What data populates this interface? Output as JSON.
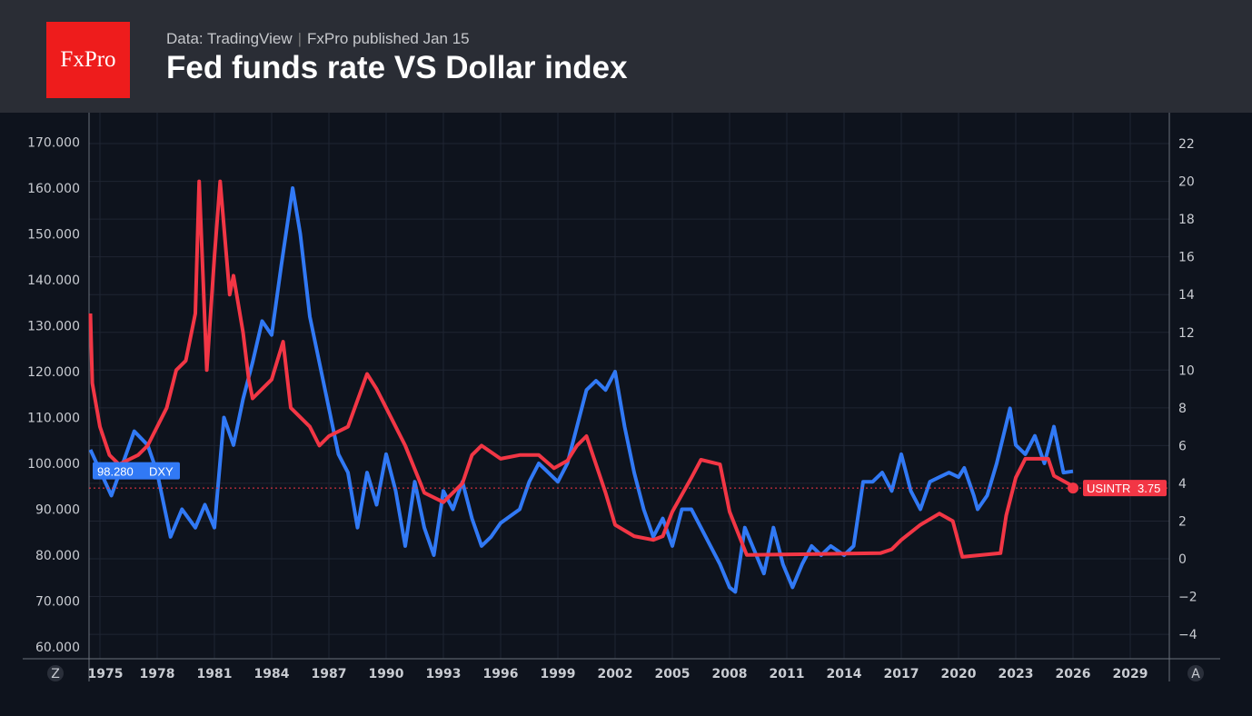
{
  "header": {
    "logo": "FxPro",
    "source": "Data: TradingView",
    "published": "FxPro published Jan 15",
    "title": "Fed funds rate VS Dollar index"
  },
  "chart_data": {
    "type": "line",
    "title": "Fed funds rate VS Dollar index",
    "x_ticks": [
      "1975",
      "1978",
      "1981",
      "1984",
      "1987",
      "1990",
      "1993",
      "1996",
      "1999",
      "2002",
      "2005",
      "2008",
      "2011",
      "2014",
      "2017",
      "2020",
      "2023",
      "2026",
      "2029"
    ],
    "xlim": [
      1974.4,
      2030.8
    ],
    "left_axis": {
      "ticks": [
        "60.000",
        "70.000",
        "80.000",
        "90.000",
        "100.000",
        "110.000",
        "120.000",
        "130.000",
        "140.000",
        "150.000",
        "160.000",
        "170.000"
      ],
      "ylim": [
        60,
        170
      ]
    },
    "right_axis": {
      "ticks": [
        "−4",
        "−2",
        "0",
        "2",
        "4",
        "6",
        "8",
        "10",
        "12",
        "14",
        "16",
        "18",
        "20",
        "22"
      ],
      "ylim": [
        -4,
        22
      ]
    },
    "grid": true,
    "corner_left": "Z",
    "corner_right": "A",
    "series": [
      {
        "name": "DXY",
        "axis": "left",
        "color": "#3179f5",
        "last_label": "98.280",
        "points": [
          [
            1974.5,
            103
          ],
          [
            1975.6,
            93
          ],
          [
            1976.8,
            107
          ],
          [
            1977.5,
            104
          ],
          [
            1978,
            98
          ],
          [
            1978.7,
            84
          ],
          [
            1979.3,
            90
          ],
          [
            1980,
            86
          ],
          [
            1980.5,
            91
          ],
          [
            1981,
            86
          ],
          [
            1981.5,
            110
          ],
          [
            1982,
            104
          ],
          [
            1982.5,
            114
          ],
          [
            1983,
            122
          ],
          [
            1983.5,
            131
          ],
          [
            1984,
            128
          ],
          [
            1984.5,
            143
          ],
          [
            1985.1,
            160
          ],
          [
            1985.5,
            150
          ],
          [
            1986,
            132
          ],
          [
            1986.5,
            122
          ],
          [
            1987,
            112
          ],
          [
            1987.5,
            102
          ],
          [
            1988,
            98
          ],
          [
            1988.5,
            86
          ],
          [
            1989,
            98
          ],
          [
            1989.5,
            91
          ],
          [
            1990,
            102
          ],
          [
            1990.5,
            94
          ],
          [
            1991,
            82
          ],
          [
            1991.5,
            96
          ],
          [
            1992,
            86
          ],
          [
            1992.5,
            80
          ],
          [
            1993,
            94
          ],
          [
            1993.5,
            90
          ],
          [
            1994,
            96
          ],
          [
            1994.5,
            88
          ],
          [
            1995,
            82
          ],
          [
            1995.5,
            84
          ],
          [
            1996,
            87
          ],
          [
            1997,
            90
          ],
          [
            1997.5,
            96
          ],
          [
            1998,
            100
          ],
          [
            1998.5,
            98
          ],
          [
            1999,
            96
          ],
          [
            1999.5,
            100
          ],
          [
            2000,
            108
          ],
          [
            2000.5,
            116
          ],
          [
            2001,
            118
          ],
          [
            2001.5,
            116
          ],
          [
            2002,
            120
          ],
          [
            2002.5,
            108
          ],
          [
            2003,
            98
          ],
          [
            2003.5,
            90
          ],
          [
            2004,
            84
          ],
          [
            2004.5,
            88
          ],
          [
            2005,
            82
          ],
          [
            2005.5,
            90
          ],
          [
            2006,
            90
          ],
          [
            2006.5,
            86
          ],
          [
            2007,
            82
          ],
          [
            2007.5,
            78
          ],
          [
            2008,
            73
          ],
          [
            2008.3,
            72
          ],
          [
            2008.8,
            86
          ],
          [
            2009.2,
            82
          ],
          [
            2009.8,
            76
          ],
          [
            2010.3,
            86
          ],
          [
            2010.8,
            78
          ],
          [
            2011.3,
            73
          ],
          [
            2011.8,
            78
          ],
          [
            2012.3,
            82
          ],
          [
            2012.8,
            80
          ],
          [
            2013.3,
            82
          ],
          [
            2014,
            80
          ],
          [
            2014.5,
            82
          ],
          [
            2015,
            96
          ],
          [
            2015.5,
            96
          ],
          [
            2016,
            98
          ],
          [
            2016.5,
            94
          ],
          [
            2017,
            102
          ],
          [
            2017.5,
            94
          ],
          [
            2018,
            90
          ],
          [
            2018.5,
            96
          ],
          [
            2019,
            97
          ],
          [
            2019.5,
            98
          ],
          [
            2020,
            97
          ],
          [
            2020.3,
            99
          ],
          [
            2020.8,
            93
          ],
          [
            2021,
            90
          ],
          [
            2021.5,
            93
          ],
          [
            2022,
            100
          ],
          [
            2022.7,
            112
          ],
          [
            2023,
            104
          ],
          [
            2023.5,
            102
          ],
          [
            2024,
            106
          ],
          [
            2024.5,
            100
          ],
          [
            2025,
            108
          ],
          [
            2025.5,
            98
          ],
          [
            2026,
            98.28
          ]
        ]
      },
      {
        "name": "USINTR",
        "axis": "right",
        "color": "#f23645",
        "last_label": "3.75",
        "points": [
          [
            1974.5,
            13
          ],
          [
            1974.6,
            9.3
          ],
          [
            1975,
            7
          ],
          [
            1975.5,
            5.5
          ],
          [
            1976,
            5
          ],
          [
            1977,
            5.5
          ],
          [
            1977.5,
            6
          ],
          [
            1978,
            7
          ],
          [
            1978.5,
            8
          ],
          [
            1979,
            10
          ],
          [
            1979.5,
            10.5
          ],
          [
            1980,
            13
          ],
          [
            1980.2,
            20
          ],
          [
            1980.6,
            10
          ],
          [
            1981,
            16
          ],
          [
            1981.3,
            20
          ],
          [
            1981.8,
            14
          ],
          [
            1982,
            15
          ],
          [
            1982.5,
            12
          ],
          [
            1982.8,
            9.5
          ],
          [
            1983,
            8.5
          ],
          [
            1984,
            9.5
          ],
          [
            1984.6,
            11.5
          ],
          [
            1985,
            8
          ],
          [
            1986,
            7
          ],
          [
            1986.5,
            6
          ],
          [
            1987,
            6.5
          ],
          [
            1988,
            7
          ],
          [
            1989,
            9.8
          ],
          [
            1989.5,
            9
          ],
          [
            1990,
            8
          ],
          [
            1991,
            6
          ],
          [
            1992,
            3.5
          ],
          [
            1993,
            3
          ],
          [
            1994,
            4
          ],
          [
            1994.5,
            5.5
          ],
          [
            1995,
            6
          ],
          [
            1996,
            5.3
          ],
          [
            1997,
            5.5
          ],
          [
            1998,
            5.5
          ],
          [
            1998.8,
            4.8
          ],
          [
            1999.5,
            5.2
          ],
          [
            2000,
            6
          ],
          [
            2000.5,
            6.5
          ],
          [
            2001,
            5
          ],
          [
            2001.5,
            3.5
          ],
          [
            2002,
            1.8
          ],
          [
            2003,
            1.2
          ],
          [
            2004,
            1
          ],
          [
            2004.5,
            1.2
          ],
          [
            2005,
            2.5
          ],
          [
            2006,
            4.3
          ],
          [
            2006.5,
            5.25
          ],
          [
            2007.5,
            5.0
          ],
          [
            2008,
            2.5
          ],
          [
            2008.9,
            0.2
          ],
          [
            2015.9,
            0.3
          ],
          [
            2016.5,
            0.5
          ],
          [
            2017,
            1
          ],
          [
            2018,
            1.8
          ],
          [
            2019,
            2.4
          ],
          [
            2019.7,
            2
          ],
          [
            2020.2,
            0.1
          ],
          [
            2022.2,
            0.3
          ],
          [
            2022.5,
            2.3
          ],
          [
            2023,
            4.3
          ],
          [
            2023.5,
            5.3
          ],
          [
            2024.7,
            5.3
          ],
          [
            2025,
            4.4
          ],
          [
            2025.9,
            3.9
          ],
          [
            2026,
            3.75
          ]
        ]
      }
    ]
  }
}
